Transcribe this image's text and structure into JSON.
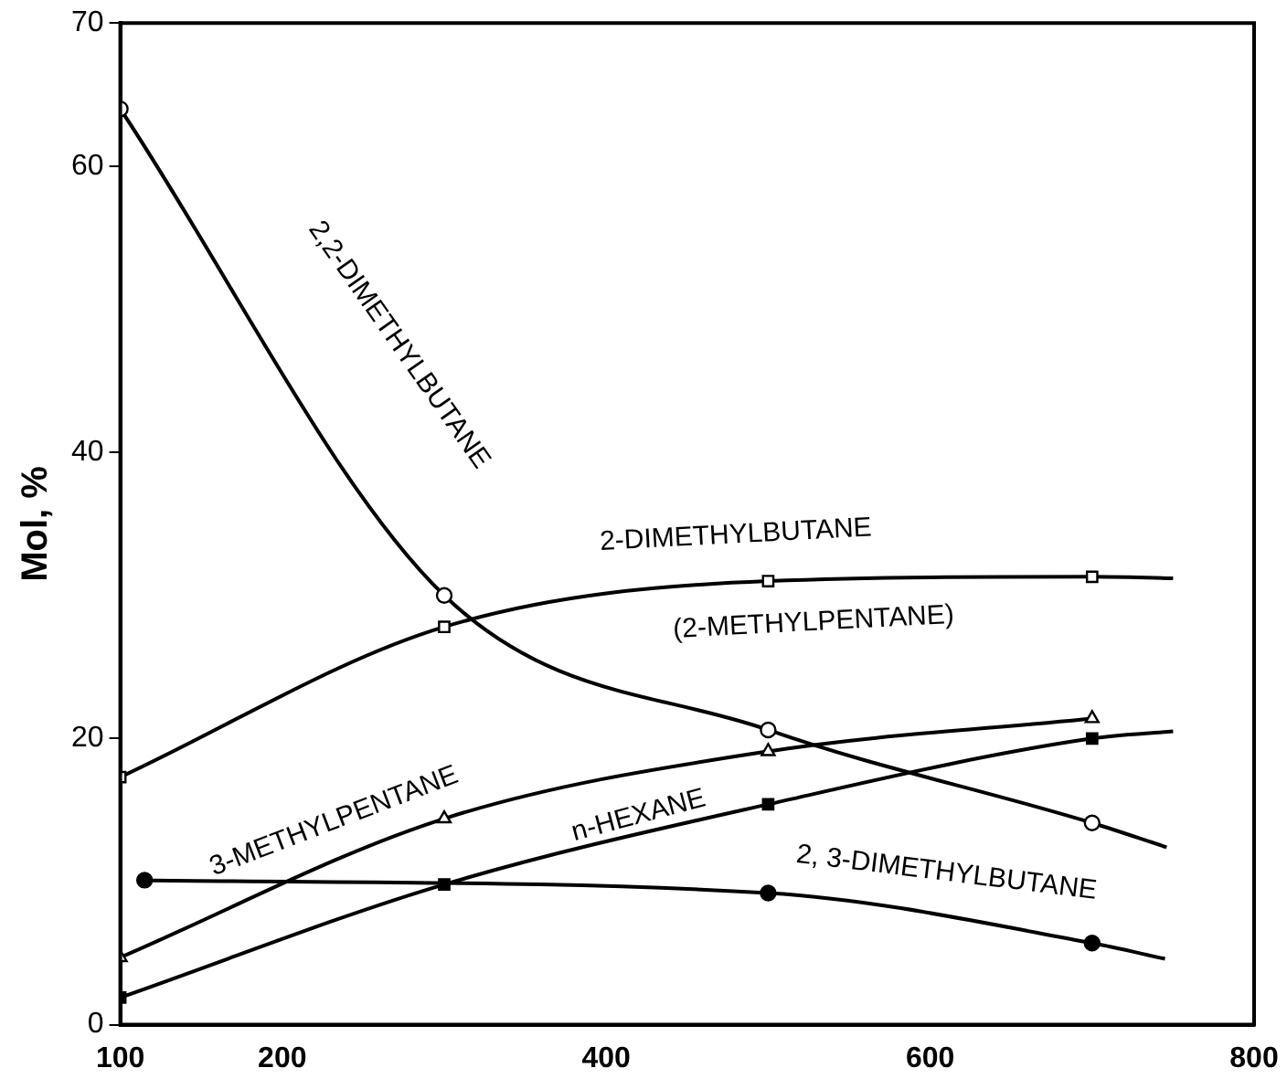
{
  "chart_data": {
    "type": "line",
    "ylabel": "Mol, %",
    "xlim": [
      100,
      800
    ],
    "xticks": [
      100,
      200,
      400,
      600,
      800
    ],
    "ylim": [
      0,
      70
    ],
    "yticks": [
      0,
      20,
      40,
      60,
      70
    ],
    "grid": false,
    "legend": false,
    "series": [
      {
        "name": "2,2-DIMETHYLBUTANE",
        "color": "#000000",
        "marker": "circle",
        "x": [
          100,
          300,
          500,
          700,
          746
        ],
        "values": [
          64,
          30,
          20.6,
          14.1,
          12.4
        ]
      },
      {
        "name": "2-DIMETHYLBUTANE (2-METHYLPENTANE)",
        "color": "#000000",
        "marker": "square",
        "x": [
          100,
          300,
          500,
          700,
          750
        ],
        "values": [
          17.3,
          27.8,
          31,
          31.3,
          31.2
        ]
      },
      {
        "name": "3-METHYLPENTANE",
        "color": "#000000",
        "marker": "triangle",
        "x": [
          100,
          300,
          500,
          700
        ],
        "values": [
          4.7,
          14.4,
          19.1,
          21.4
        ]
      },
      {
        "name": "n-HEXANE",
        "color": "#000000",
        "marker": "square",
        "x": [
          100,
          300,
          500,
          700,
          750
        ],
        "values": [
          1.9,
          9.8,
          15.4,
          20,
          20.5
        ]
      },
      {
        "name": "2, 3-DIMETHYLBUTANE",
        "color": "#000000",
        "marker": "circle",
        "x": [
          115,
          500,
          700,
          745
        ],
        "values": [
          10.1,
          9.2,
          5.7,
          4.6
        ]
      }
    ]
  }
}
